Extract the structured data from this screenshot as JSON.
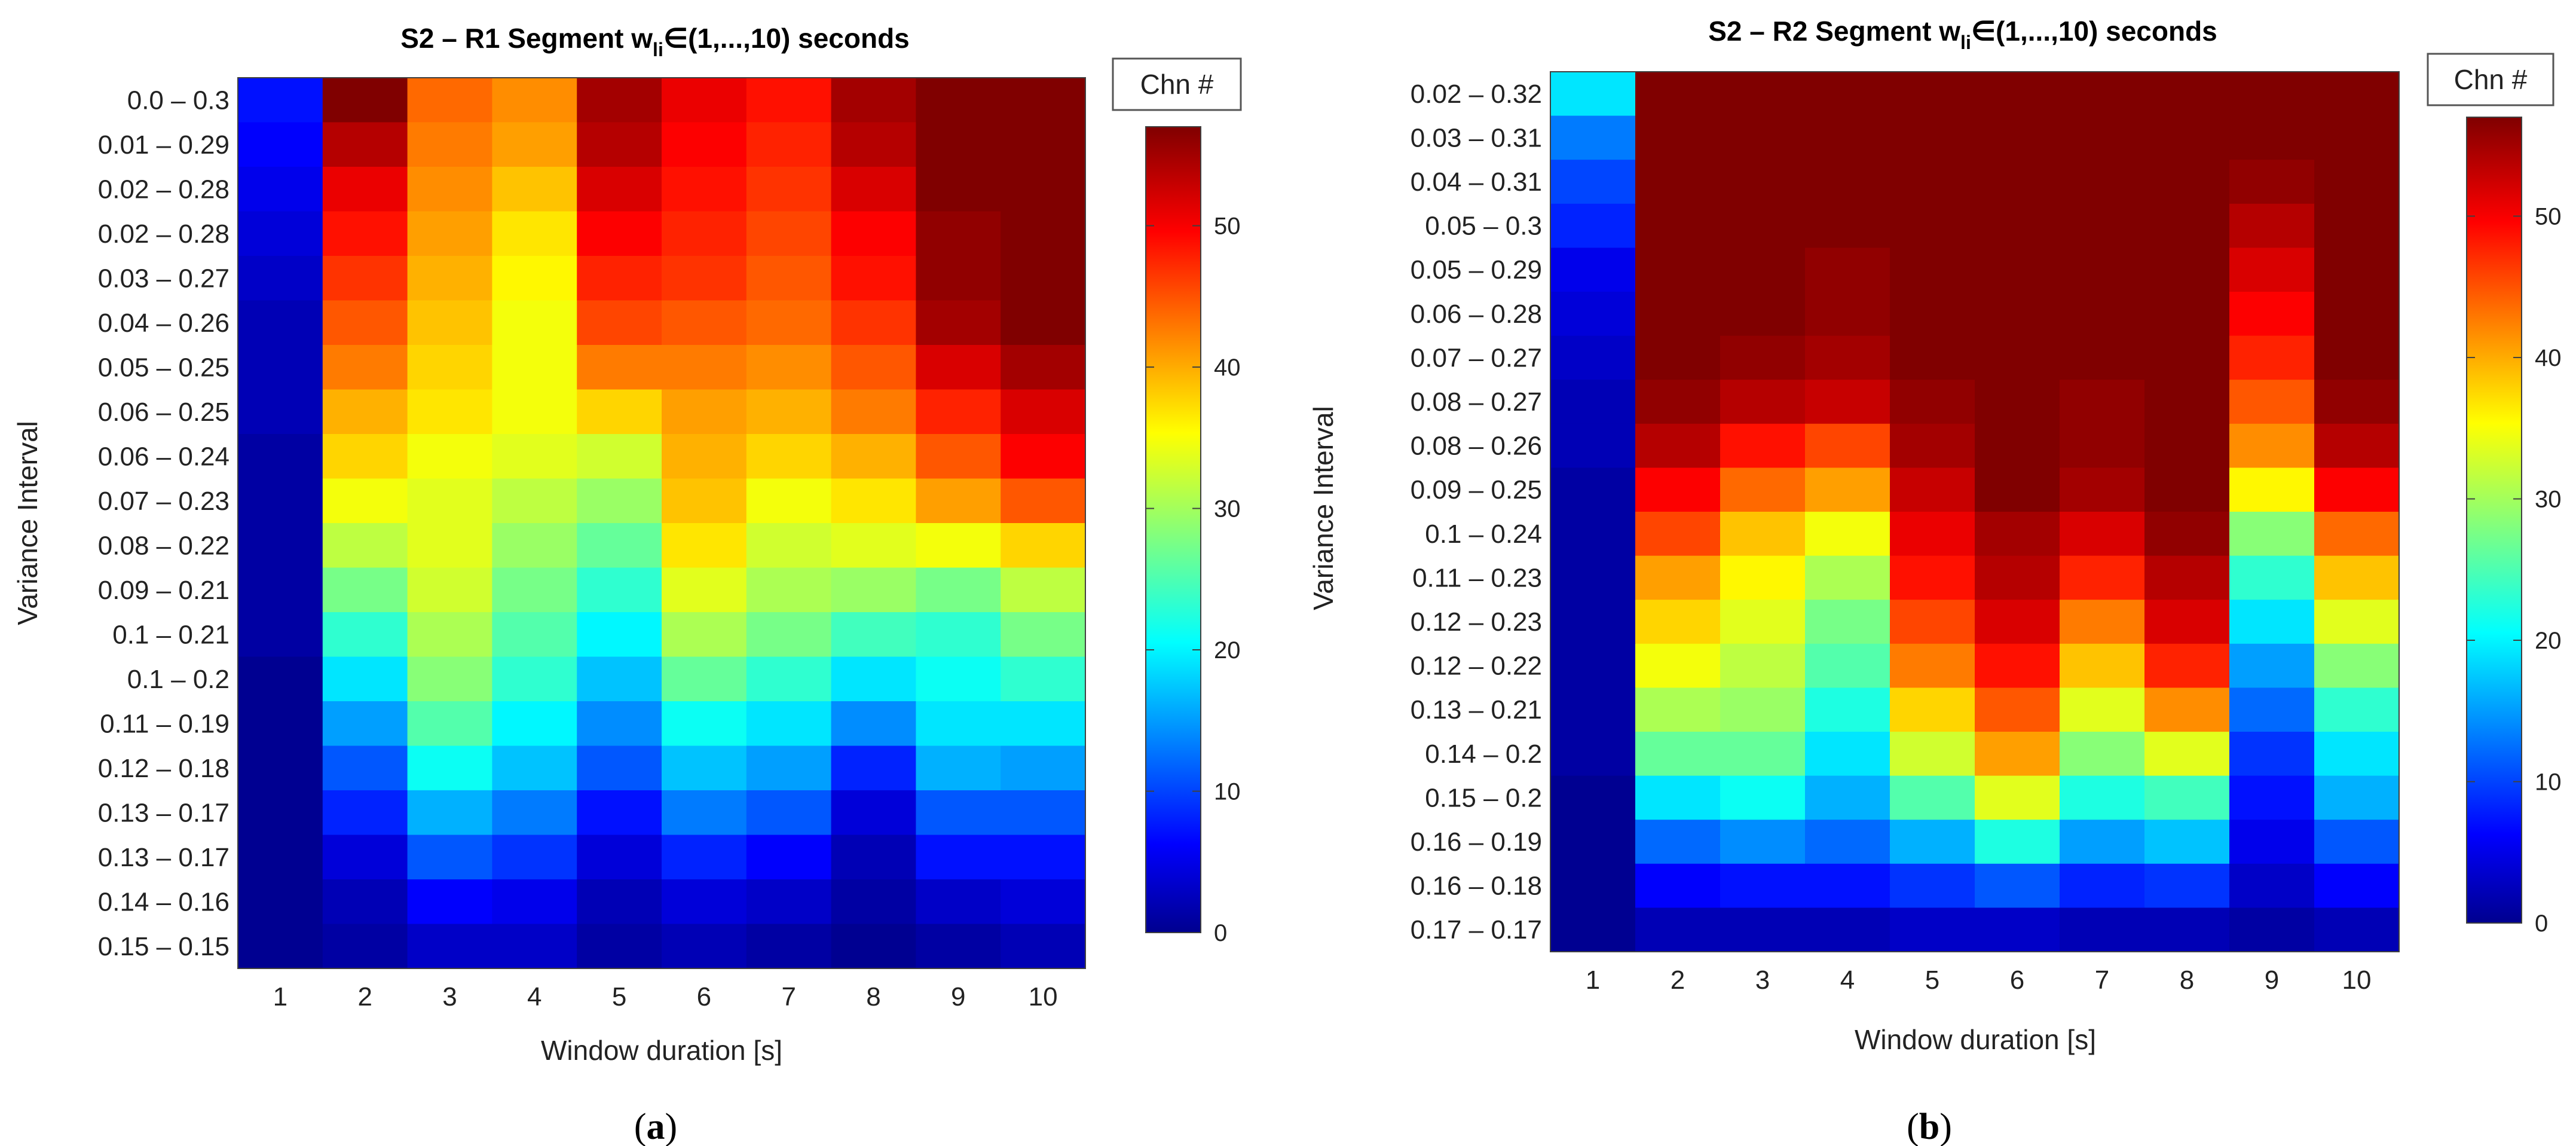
{
  "colors": {
    "background": "#ffffff",
    "text": "#000000",
    "frame": "#404040"
  },
  "chart_data": [
    {
      "type": "heatmap",
      "panel_label": "a",
      "title_pre": "S2 – R1 Segment w",
      "title_sub": "li",
      "title_post": "∈(1,...,10) seconds",
      "xlabel": "Window duration [s]",
      "ylabel": "Variance Interval",
      "colorbar_label": "Chn #",
      "colorbar_ticks": [
        0,
        10,
        20,
        30,
        40,
        50
      ],
      "zlim": [
        0,
        57
      ],
      "colormap": "jet",
      "x": [
        "1",
        "2",
        "3",
        "4",
        "5",
        "6",
        "7",
        "8",
        "9",
        "10"
      ],
      "y": [
        "0.0 – 0.3",
        "0.01 – 0.29",
        "0.02 – 0.28",
        "0.02 – 0.28",
        "0.03 – 0.27",
        "0.04 – 0.26",
        "0.05 – 0.25",
        "0.06 – 0.25",
        "0.06 – 0.24",
        "0.07 – 0.23",
        "0.08 – 0.22",
        "0.09 – 0.21",
        "0.1 – 0.21",
        "0.1 – 0.2",
        "0.11 – 0.19",
        "0.12 – 0.18",
        "0.13 – 0.17",
        "0.13 – 0.17",
        "0.14 – 0.16",
        "0.15 – 0.15"
      ],
      "z": [
        [
          8,
          57,
          44,
          42,
          55,
          51,
          49,
          55,
          57,
          57
        ],
        [
          7,
          54,
          43,
          41,
          54,
          50,
          48,
          54,
          57,
          57
        ],
        [
          6,
          51,
          42,
          39,
          52,
          49,
          47,
          52,
          57,
          57
        ],
        [
          5,
          49,
          41,
          37,
          50,
          48,
          46,
          50,
          56,
          57
        ],
        [
          4,
          47,
          40,
          36,
          48,
          47,
          45,
          49,
          56,
          57
        ],
        [
          3,
          45,
          39,
          35,
          46,
          45,
          44,
          47,
          55,
          57
        ],
        [
          3,
          43,
          38,
          35,
          43,
          43,
          42,
          45,
          52,
          55
        ],
        [
          3,
          40,
          37,
          35,
          38,
          41,
          40,
          43,
          48,
          52
        ],
        [
          2,
          38,
          35,
          34,
          33,
          40,
          38,
          40,
          45,
          50
        ],
        [
          2,
          35,
          34,
          32,
          30,
          39,
          35,
          37,
          41,
          45
        ],
        [
          2,
          32,
          34,
          30,
          27,
          37,
          33,
          34,
          35,
          38
        ],
        [
          2,
          28,
          33,
          28,
          24,
          34,
          31,
          30,
          28,
          32
        ],
        [
          2,
          24,
          31,
          26,
          21,
          31,
          28,
          25,
          24,
          28
        ],
        [
          1,
          20,
          29,
          24,
          18,
          27,
          24,
          20,
          22,
          24
        ],
        [
          1,
          16,
          26,
          21,
          15,
          22,
          20,
          15,
          20,
          20
        ],
        [
          1,
          12,
          22,
          18,
          12,
          18,
          16,
          9,
          17,
          16
        ],
        [
          1,
          9,
          17,
          14,
          8,
          14,
          12,
          5,
          12,
          12
        ],
        [
          1,
          5,
          12,
          10,
          5,
          9,
          7,
          3,
          8,
          8
        ],
        [
          1,
          3,
          7,
          6,
          3,
          5,
          4,
          2,
          4,
          5
        ],
        [
          1,
          2,
          4,
          4,
          2,
          3,
          2,
          1,
          2,
          3
        ]
      ]
    },
    {
      "type": "heatmap",
      "panel_label": "b",
      "title_pre": "S2 – R2 Segment w",
      "title_sub": "li",
      "title_post": "∈(1,...,10) seconds",
      "xlabel": "Window duration [s]",
      "ylabel": "Variance Interval",
      "colorbar_label": "Chn #",
      "colorbar_ticks": [
        0,
        10,
        20,
        30,
        40,
        50
      ],
      "zlim": [
        0,
        57
      ],
      "colormap": "jet",
      "x": [
        "1",
        "2",
        "3",
        "4",
        "5",
        "6",
        "7",
        "8",
        "9",
        "10"
      ],
      "y": [
        "0.02 – 0.32",
        "0.03 – 0.31",
        "0.04 – 0.31",
        "0.05 – 0.3",
        "0.05 – 0.29",
        "0.06 – 0.28",
        "0.07 – 0.27",
        "0.08 – 0.27",
        "0.08 – 0.26",
        "0.09 – 0.25",
        "0.1 – 0.24",
        "0.11 – 0.23",
        "0.12 – 0.23",
        "0.12 – 0.22",
        "0.13 – 0.21",
        "0.14 – 0.2",
        "0.15 – 0.2",
        "0.16 – 0.19",
        "0.16 – 0.18",
        "0.17 – 0.17"
      ],
      "z": [
        [
          20,
          57,
          57,
          57,
          57,
          57,
          57,
          57,
          57,
          57
        ],
        [
          14,
          57,
          57,
          57,
          57,
          57,
          57,
          57,
          57,
          57
        ],
        [
          11,
          57,
          57,
          57,
          57,
          57,
          57,
          57,
          56,
          57
        ],
        [
          9,
          57,
          57,
          57,
          57,
          57,
          57,
          57,
          54,
          57
        ],
        [
          6,
          57,
          57,
          56,
          57,
          57,
          57,
          57,
          52,
          57
        ],
        [
          5,
          57,
          57,
          56,
          57,
          57,
          57,
          57,
          50,
          57
        ],
        [
          4,
          57,
          56,
          55,
          57,
          57,
          57,
          57,
          48,
          57
        ],
        [
          3,
          56,
          54,
          53,
          56,
          57,
          56,
          57,
          45,
          56
        ],
        [
          3,
          54,
          49,
          46,
          55,
          57,
          56,
          57,
          42,
          54
        ],
        [
          2,
          50,
          44,
          41,
          53,
          57,
          55,
          57,
          36,
          50
        ],
        [
          2,
          46,
          39,
          35,
          51,
          55,
          52,
          56,
          29,
          44
        ],
        [
          2,
          41,
          36,
          31,
          49,
          54,
          48,
          54,
          24,
          39
        ],
        [
          2,
          38,
          34,
          28,
          46,
          52,
          43,
          52,
          20,
          34
        ],
        [
          2,
          35,
          32,
          26,
          43,
          49,
          39,
          48,
          16,
          29
        ],
        [
          2,
          31,
          30,
          23,
          38,
          45,
          34,
          42,
          13,
          24
        ],
        [
          2,
          27,
          27,
          20,
          33,
          41,
          29,
          34,
          10,
          20
        ],
        [
          1,
          20,
          22,
          17,
          26,
          34,
          23,
          25,
          8,
          17
        ],
        [
          1,
          13,
          15,
          13,
          17,
          23,
          16,
          18,
          6,
          12
        ],
        [
          1,
          7,
          8,
          8,
          10,
          12,
          9,
          10,
          4,
          7
        ],
        [
          1,
          3,
          3,
          3,
          4,
          4,
          3,
          3,
          2,
          3
        ]
      ]
    }
  ]
}
